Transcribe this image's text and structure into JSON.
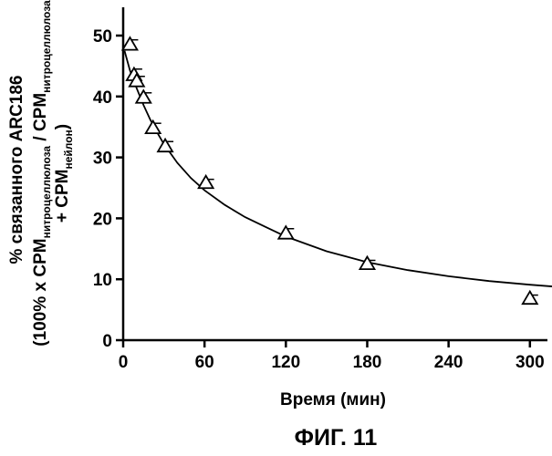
{
  "chart_data": {
    "type": "scatter",
    "title": "",
    "xlabel": "Время (мин)",
    "ylabel": {
      "line1": "% связанного ARC186",
      "line2_pre": "(100% x CPM",
      "line2_sub1": "нитроцеллюлоза",
      "line2_mid": " / CPM",
      "line2_sub2": "нитроцеллюлоза",
      "line3_pre": "+ CPM",
      "line3_sub": "нейлон",
      "line3_post": ")"
    },
    "xlim": [
      0,
      330
    ],
    "ylim": [
      0,
      55
    ],
    "x_ticks": [
      0,
      60,
      120,
      180,
      240,
      300
    ],
    "y_ticks": [
      0,
      10,
      20,
      30,
      40,
      50
    ],
    "marker": "open-triangle",
    "grid": false,
    "legend": "none",
    "points": [
      {
        "x": 5,
        "y": 48.5,
        "err": 0.8
      },
      {
        "x": 8,
        "y": 43.5,
        "err": 1.0
      },
      {
        "x": 10,
        "y": 42.5,
        "err": 0.8
      },
      {
        "x": 15,
        "y": 39.8,
        "err": 0.8
      },
      {
        "x": 22,
        "y": 34.8,
        "err": 0.8
      },
      {
        "x": 31,
        "y": 31.8,
        "err": 0.8
      },
      {
        "x": 61,
        "y": 25.8,
        "err": 0.6
      },
      {
        "x": 120,
        "y": 17.5,
        "err": 0.8
      },
      {
        "x": 180,
        "y": 12.5,
        "err": 0.6
      },
      {
        "x": 300,
        "y": 6.8,
        "err": 0.6
      }
    ],
    "fit_curve": [
      [
        1,
        47.5
      ],
      [
        5,
        44.3
      ],
      [
        10,
        41.3
      ],
      [
        15,
        38.6
      ],
      [
        20,
        36.2
      ],
      [
        25,
        34.1
      ],
      [
        30,
        32.2
      ],
      [
        40,
        29.1
      ],
      [
        50,
        26.6
      ],
      [
        60,
        24.6
      ],
      [
        75,
        22.2
      ],
      [
        90,
        20.2
      ],
      [
        105,
        18.6
      ],
      [
        120,
        17.0
      ],
      [
        150,
        14.6
      ],
      [
        180,
        12.8
      ],
      [
        210,
        11.5
      ],
      [
        240,
        10.5
      ],
      [
        270,
        9.7
      ],
      [
        300,
        9.1
      ],
      [
        330,
        8.6
      ]
    ]
  },
  "caption": "ФИГ. 11"
}
